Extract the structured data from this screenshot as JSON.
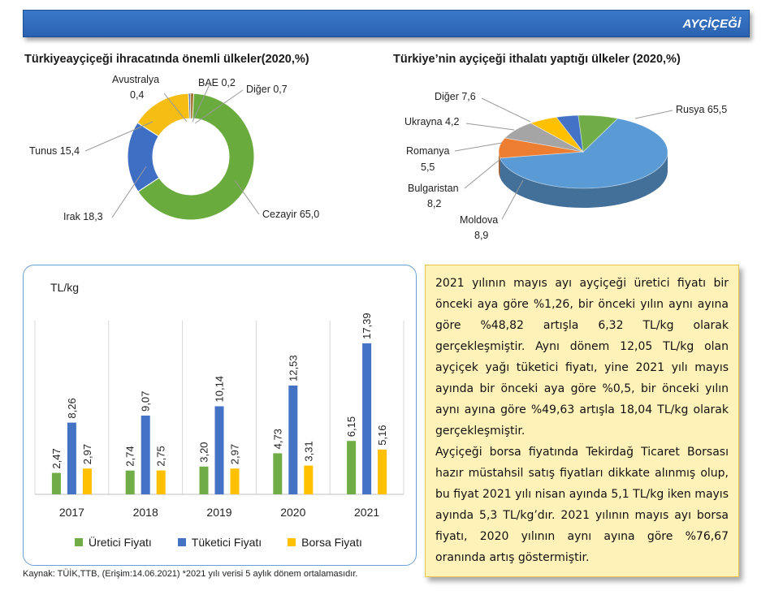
{
  "header": {
    "title": "AYÇİÇEĞİ"
  },
  "chart_data": [
    {
      "type": "pie",
      "subtype": "donut",
      "title": "Türkiyeayçiçeği ihracatında önemli ülkeler(2020,%)",
      "slices": [
        {
          "name": "Cezayir",
          "value": 65.0,
          "label": "Cezayir 65,0",
          "color": "#6aab3e"
        },
        {
          "name": "Irak",
          "value": 18.3,
          "label": "Irak 18,3",
          "color": "#3f6fc4"
        },
        {
          "name": "Tunus",
          "value": 15.4,
          "label": "Tunus 15,4",
          "color": "#f6bd14"
        },
        {
          "name": "Avustralya",
          "value": 0.4,
          "label": "Avustralya 0,4",
          "label_line1": "Avustralya",
          "label_line2": "0,4",
          "color": "#2f5597"
        },
        {
          "name": "BAE",
          "value": 0.2,
          "label": "BAE 0,2",
          "color": "#8a8a8a"
        },
        {
          "name": "Diğer",
          "value": 0.7,
          "label": "Diğer 0,7",
          "color": "#9c6a18"
        }
      ]
    },
    {
      "type": "pie",
      "subtype": "3d",
      "title": "Türkiye’nin ayçiçeği ithalatı yaptığı ülkeler (2020,%)",
      "slices": [
        {
          "name": "Rusya",
          "value": 65.5,
          "label": "Rusya 65,5",
          "color": "#5b9bd5"
        },
        {
          "name": "Moldova",
          "value": 8.9,
          "label": "Moldova 8,9",
          "label_line1": "Moldova",
          "label_line2": "8,9",
          "color": "#ed7d31"
        },
        {
          "name": "Bulgaristan",
          "value": 8.2,
          "label": "Bulgaristan 8,2",
          "label_line1": "Bulgaristan",
          "label_line2": "8,2",
          "color": "#a5a5a5"
        },
        {
          "name": "Romanya",
          "value": 5.5,
          "label": "Romanya 5,5",
          "label_line1": "Romanya",
          "label_line2": "5,5",
          "color": "#ffc000"
        },
        {
          "name": "Ukrayna",
          "value": 4.2,
          "label": "Ukrayna 4,2",
          "color": "#4472c4"
        },
        {
          "name": "Diğer",
          "value": 7.6,
          "label": "Diğer 7,6",
          "color": "#70ad47"
        }
      ]
    },
    {
      "type": "bar",
      "ylabel": "TL/kg",
      "categories": [
        "2017",
        "2018",
        "2019",
        "2020",
        "2021"
      ],
      "ylim": [
        0,
        20
      ],
      "series": [
        {
          "name": "Üretici Fiyatı",
          "color": "#70ad47",
          "values": [
            2.47,
            2.74,
            3.2,
            4.73,
            6.15
          ],
          "labels": [
            "2,47",
            "2,74",
            "3,20",
            "4,73",
            "6,15"
          ]
        },
        {
          "name": "Tüketici Fiyatı",
          "color": "#4472c4",
          "values": [
            8.26,
            9.07,
            10.14,
            12.53,
            17.39
          ],
          "labels": [
            "8,26",
            "9,07",
            "10,14",
            "12,53",
            "17,39"
          ]
        },
        {
          "name": "Borsa Fiyatı",
          "color": "#ffc000",
          "values": [
            2.97,
            2.75,
            2.97,
            3.31,
            5.16
          ],
          "labels": [
            "2,97",
            "2,75",
            "2,97",
            "3,31",
            "5,16"
          ]
        }
      ]
    }
  ],
  "textbox": {
    "p1": "2021 yılının mayıs ayı ayçiçeği üretici fiyatı bir önceki aya göre %1,26, bir önceki yılın aynı ayına göre %48,82 artışla 6,32 TL/kg olarak gerçekleşmiştir. Aynı dönem 12,05 TL/kg olan ayçiçek yağı tüketici fiyatı, yine 2021 yılı mayıs ayında bir önceki aya göre %0,5, bir önceki yılın aynı ayına göre %49,63 artışla 18,04 TL/kg olarak gerçekleşmiştir.",
    "p2": "Ayçiçeği borsa fiyatında Tekirdağ Ticaret Borsası hazır müstahsil satış fiyatları dikkate alınmış olup, bu fiyat 2021 yılı nisan ayında 5,1 TL/kg iken mayıs ayında 5,3 TL/kg’dır. 2021 yılının mayıs ayı borsa fiyatı, 2020 yılının aynı ayına göre %76,67 oranında artış göstermiştir."
  },
  "source": "Kaynak: TÜİK,TTB, (Erişim:14.06.2021) *2021 yılı verisi 5 aylık dönem ortalamasıdır."
}
